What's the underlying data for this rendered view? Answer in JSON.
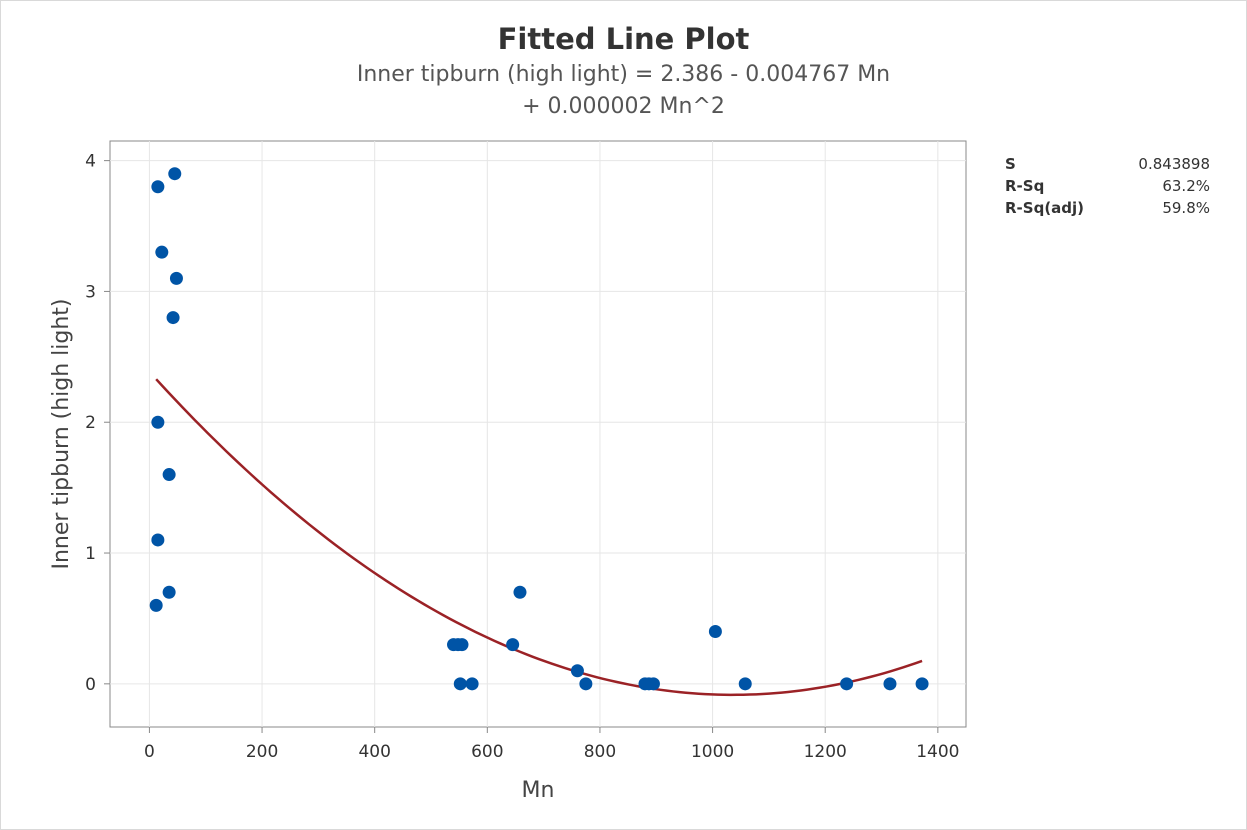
{
  "title": "Fitted Line Plot",
  "subtitle_line1": "Inner tipburn (high light) = 2.386 - 0.004767 Mn",
  "subtitle_line2": "+ 0.000002 Mn^2",
  "stats": [
    {
      "label": "S",
      "value": "0.843898"
    },
    {
      "label": "R-Sq",
      "value": "63.2%"
    },
    {
      "label": "R-Sq(adj)",
      "value": "59.8%"
    }
  ],
  "colors": {
    "points": "#0054a6",
    "fit_line": "#9b2226",
    "grid": "#e6e6e6",
    "axis": "#888888"
  },
  "chart_data": {
    "type": "scatter",
    "title": "Fitted Line Plot",
    "xlabel": "Mn",
    "ylabel": "Inner tipburn (high light)",
    "xlim": [
      -70,
      1450
    ],
    "ylim": [
      -0.33,
      4.15
    ],
    "xticks": [
      0,
      200,
      400,
      600,
      800,
      1000,
      1200,
      1400
    ],
    "yticks": [
      0,
      1,
      2,
      3,
      4
    ],
    "grid": true,
    "points": [
      {
        "x": 15,
        "y": 3.8
      },
      {
        "x": 45,
        "y": 3.9
      },
      {
        "x": 22,
        "y": 3.3
      },
      {
        "x": 48,
        "y": 3.1
      },
      {
        "x": 42,
        "y": 2.8
      },
      {
        "x": 15,
        "y": 2.0
      },
      {
        "x": 35,
        "y": 1.6
      },
      {
        "x": 15,
        "y": 1.1
      },
      {
        "x": 35,
        "y": 0.7
      },
      {
        "x": 12,
        "y": 0.6
      },
      {
        "x": 540,
        "y": 0.3
      },
      {
        "x": 548,
        "y": 0.3
      },
      {
        "x": 555,
        "y": 0.3
      },
      {
        "x": 552,
        "y": 0.0
      },
      {
        "x": 573,
        "y": 0.0
      },
      {
        "x": 645,
        "y": 0.3
      },
      {
        "x": 658,
        "y": 0.7
      },
      {
        "x": 760,
        "y": 0.1
      },
      {
        "x": 775,
        "y": 0.0
      },
      {
        "x": 880,
        "y": 0.0
      },
      {
        "x": 887,
        "y": 0.0
      },
      {
        "x": 895,
        "y": 0.0
      },
      {
        "x": 1005,
        "y": 0.4
      },
      {
        "x": 1058,
        "y": 0.0
      },
      {
        "x": 1238,
        "y": 0.0
      },
      {
        "x": 1315,
        "y": 0.0
      },
      {
        "x": 1372,
        "y": 0.0
      }
    ],
    "fit": {
      "equation": "Inner tipburn (high light) = 2.386 - 0.004767 Mn + 0.000002 Mn^2",
      "intercept": 2.386,
      "linear": -0.004767,
      "quadratic": 2.3e-06,
      "x_range": [
        12,
        1372
      ]
    }
  }
}
